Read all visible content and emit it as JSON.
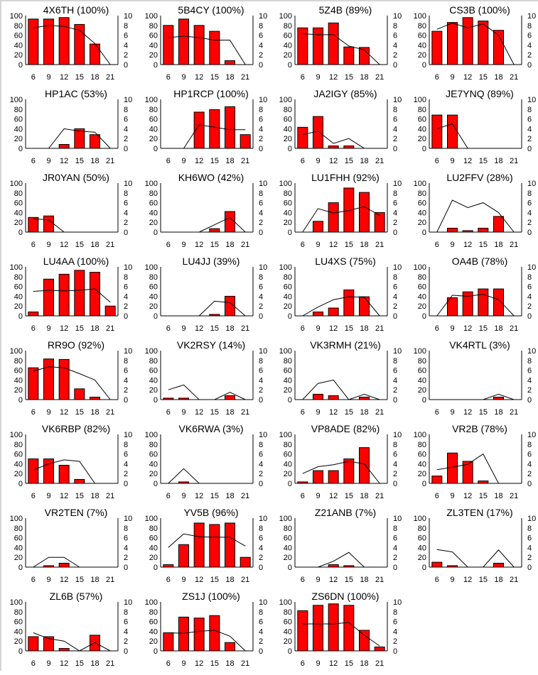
{
  "chart_data": {
    "type": "bar+line",
    "categories": [
      "6",
      "9",
      "12",
      "15",
      "18",
      "21"
    ],
    "left_ylim": [
      0,
      100
    ],
    "left_yticks": [
      "0",
      "20",
      "40",
      "60",
      "80",
      "100"
    ],
    "right_ylim": [
      0,
      10
    ],
    "right_yticks": [
      "0",
      "2",
      "4",
      "6",
      "8",
      "10"
    ],
    "bar_color": "#ff0000",
    "line_color": "#000000",
    "grid": false,
    "charts": [
      {
        "title": "4X6TH (100%)",
        "bars": [
          93,
          93,
          96,
          82,
          42,
          0
        ],
        "line": [
          7.5,
          8,
          7.8,
          7,
          4.3,
          0
        ]
      },
      {
        "title": "5B4CY (100%)",
        "bars": [
          80,
          93,
          80,
          68,
          8,
          0
        ],
        "line": [
          5.5,
          5.8,
          5.5,
          5,
          5,
          0
        ]
      },
      {
        "title": "5Z4B (89%)",
        "bars": [
          75,
          75,
          85,
          36,
          35,
          0
        ],
        "line": [
          6.3,
          6.1,
          6.1,
          3.8,
          3,
          0
        ]
      },
      {
        "title": "CS3B (100%)",
        "bars": [
          68,
          86,
          96,
          89,
          70,
          0
        ],
        "line": [
          7.2,
          8.5,
          7.5,
          8.3,
          6,
          0
        ]
      },
      {
        "title": "HP1AC (53%)",
        "bars": [
          0,
          0,
          8,
          40,
          28,
          0
        ],
        "line": [
          null,
          0,
          4,
          3.5,
          3.3,
          0
        ]
      },
      {
        "title": "HP1RCP (100%)",
        "bars": [
          0,
          0,
          74,
          79,
          85,
          28
        ],
        "line": [
          null,
          0,
          4.8,
          4.3,
          3.8,
          3.8
        ]
      },
      {
        "title": "JA2IGY (85%)",
        "bars": [
          43,
          65,
          5,
          5,
          0,
          0
        ],
        "line": [
          2.8,
          3.5,
          1,
          2,
          0,
          null
        ]
      },
      {
        "title": "JE7YNQ (89%)",
        "bars": [
          68,
          68,
          0,
          0,
          0,
          0
        ],
        "line": [
          4,
          5,
          0,
          null,
          null,
          null
        ]
      },
      {
        "title": "JR0YAN (50%)",
        "bars": [
          30,
          33,
          0,
          0,
          0,
          0
        ],
        "line": [
          2.7,
          2.5,
          0,
          null,
          null,
          null
        ]
      },
      {
        "title": "KH6WO (42%)",
        "bars": [
          0,
          0,
          0,
          7,
          42,
          0
        ],
        "line": [
          null,
          null,
          0,
          1.5,
          3,
          0
        ]
      },
      {
        "title": "LU1FHH (92%)",
        "bars": [
          0,
          22,
          60,
          90,
          81,
          40
        ],
        "line": [
          0,
          4.8,
          3.9,
          4.4,
          5.2,
          3.4
        ]
      },
      {
        "title": "LU2FFV (28%)",
        "bars": [
          0,
          8,
          3,
          8,
          32,
          0
        ],
        "line": [
          0,
          6.5,
          5,
          6,
          4,
          0
        ]
      },
      {
        "title": "LU4AA (100%)",
        "bars": [
          8,
          75,
          85,
          93,
          89,
          20
        ],
        "line": [
          5,
          5.2,
          5.1,
          5.2,
          5.5,
          2.8
        ]
      },
      {
        "title": "LU4JJ (39%)",
        "bars": [
          0,
          0,
          0,
          3,
          40,
          0
        ],
        "line": [
          null,
          null,
          0,
          3,
          2.7,
          0
        ]
      },
      {
        "title": "LU4XS (75%)",
        "bars": [
          0,
          8,
          16,
          53,
          39,
          0
        ],
        "line": [
          0,
          1.8,
          3.3,
          3.9,
          3.8,
          0
        ]
      },
      {
        "title": "OA4B (78%)",
        "bars": [
          0,
          37,
          49,
          55,
          55,
          0
        ],
        "line": [
          0,
          4.2,
          4,
          4.4,
          3.3,
          0
        ]
      },
      {
        "title": "RR9O (92%)",
        "bars": [
          65,
          83,
          82,
          22,
          5,
          0
        ],
        "line": [
          5.8,
          6.7,
          6.5,
          5.3,
          4,
          0
        ]
      },
      {
        "title": "VK2RSY (14%)",
        "bars": [
          3,
          3,
          0,
          0,
          8,
          0
        ],
        "line": [
          2,
          3,
          0,
          0,
          1.5,
          0
        ]
      },
      {
        "title": "VK3RMH (21%)",
        "bars": [
          0,
          11,
          8,
          0,
          5,
          0
        ],
        "line": [
          0,
          3.3,
          4,
          0,
          1.1,
          0
        ]
      },
      {
        "title": "VK4RTL (3%)",
        "bars": [
          0,
          0,
          0,
          0,
          5,
          0
        ],
        "line": [
          null,
          null,
          null,
          0,
          1.1,
          0
        ]
      },
      {
        "title": "VK6RBP (82%)",
        "bars": [
          50,
          50,
          37,
          8,
          0,
          0
        ],
        "line": [
          2.7,
          4,
          4.8,
          4.5,
          0,
          null
        ]
      },
      {
        "title": "VK6RWA (3%)",
        "bars": [
          0,
          3,
          0,
          0,
          0,
          0
        ],
        "line": [
          0,
          3,
          0,
          null,
          null,
          null
        ]
      },
      {
        "title": "VP8ADE (82%)",
        "bars": [
          3,
          26,
          26,
          50,
          73,
          0
        ],
        "line": [
          2,
          3.4,
          3.8,
          4.5,
          4,
          0
        ]
      },
      {
        "title": "VR2B (78%)",
        "bars": [
          15,
          62,
          45,
          5,
          0,
          0
        ],
        "line": [
          2.8,
          3.3,
          3.9,
          6,
          0,
          null
        ]
      },
      {
        "title": "VR2TEN (7%)",
        "bars": [
          0,
          3,
          8,
          0,
          0,
          0
        ],
        "line": [
          0,
          2,
          2,
          0,
          null,
          null
        ]
      },
      {
        "title": "YV5B (96%)",
        "bars": [
          5,
          46,
          90,
          87,
          90,
          20
        ],
        "line": [
          4,
          6.8,
          6.2,
          6.1,
          6.1,
          4.3
        ]
      },
      {
        "title": "Z21ANB (7%)",
        "bars": [
          0,
          0,
          5,
          3,
          0,
          0
        ],
        "line": [
          null,
          0,
          1.2,
          3,
          0,
          null
        ]
      },
      {
        "title": "ZL3TEN (17%)",
        "bars": [
          10,
          3,
          0,
          0,
          8,
          0
        ],
        "line": [
          3.6,
          3.1,
          0,
          0,
          3.5,
          0
        ]
      },
      {
        "title": "ZL6B (57%)",
        "bars": [
          29,
          29,
          5,
          0,
          32,
          0
        ],
        "line": [
          3.7,
          2.5,
          2,
          0,
          1.7,
          0
        ]
      },
      {
        "title": "ZS1J (100%)",
        "bars": [
          37,
          69,
          67,
          72,
          17,
          0
        ],
        "line": [
          3.7,
          3.6,
          4,
          4.2,
          3,
          0
        ]
      },
      {
        "title": "ZS6DN (100%)",
        "bars": [
          82,
          93,
          96,
          93,
          42,
          8
        ],
        "line": [
          5.5,
          5.5,
          5.5,
          5.8,
          3.2,
          1
        ]
      }
    ]
  }
}
